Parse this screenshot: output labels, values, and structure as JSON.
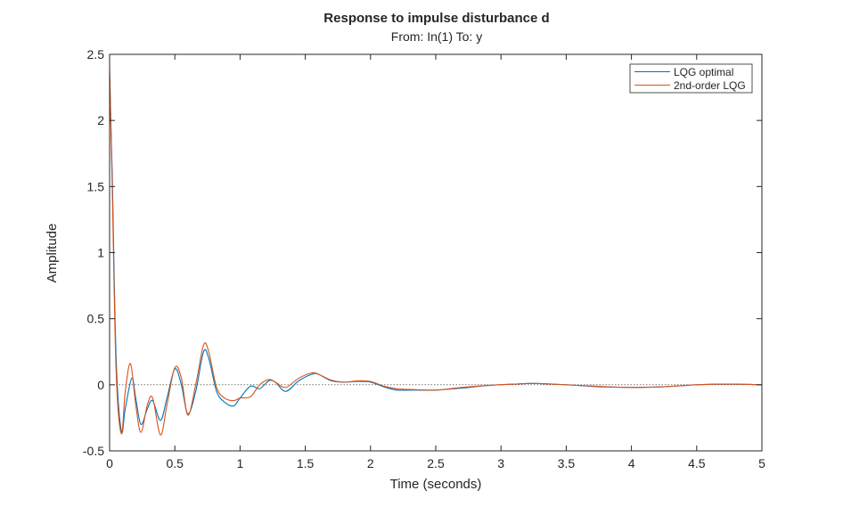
{
  "chart_data": {
    "type": "line",
    "title": "Response to impulse disturbance d",
    "subtitle": "From: In(1)  To: y",
    "xlabel": "Time (seconds)",
    "ylabel": "Amplitude",
    "xlim": [
      0,
      5
    ],
    "ylim": [
      -0.5,
      2.5
    ],
    "xticks": [
      0,
      0.5,
      1,
      1.5,
      2,
      2.5,
      3,
      3.5,
      4,
      4.5,
      5
    ],
    "xtick_labels": [
      "0",
      "0.5",
      "1",
      "1.5",
      "2",
      "2.5",
      "3",
      "3.5",
      "4",
      "4.5",
      "5"
    ],
    "yticks": [
      -0.5,
      0,
      0.5,
      1,
      1.5,
      2,
      2.5
    ],
    "ytick_labels": [
      "-0.5",
      "0",
      "0.5",
      "1",
      "1.5",
      "2",
      "2.5"
    ],
    "zero_line": true,
    "grid": false,
    "legend_position": "top-right",
    "series": [
      {
        "name": "LQG optimal",
        "color": "#0072BD",
        "x": [
          0,
          0.02,
          0.05,
          0.09,
          0.12,
          0.17,
          0.2,
          0.24,
          0.29,
          0.33,
          0.39,
          0.44,
          0.5,
          0.55,
          0.6,
          0.66,
          0.72,
          0.76,
          0.82,
          0.88,
          0.95,
          1.0,
          1.08,
          1.15,
          1.22,
          1.27,
          1.35,
          1.45,
          1.55,
          1.6,
          1.7,
          1.8,
          1.9,
          2.0,
          2.1,
          2.2,
          2.3,
          2.5,
          2.7,
          2.9,
          3.1,
          3.25,
          3.5,
          3.75,
          4.0,
          4.25,
          4.5,
          4.75,
          5.0
        ],
        "y": [
          2.35,
          1.6,
          0.2,
          -0.35,
          -0.18,
          0.05,
          -0.1,
          -0.3,
          -0.18,
          -0.12,
          -0.27,
          -0.1,
          0.12,
          0.0,
          -0.22,
          -0.05,
          0.25,
          0.2,
          -0.05,
          -0.13,
          -0.16,
          -0.1,
          -0.01,
          -0.03,
          0.03,
          0.02,
          -0.05,
          0.03,
          0.08,
          0.08,
          0.03,
          0.02,
          0.025,
          0.02,
          -0.015,
          -0.04,
          -0.04,
          -0.04,
          -0.025,
          -0.005,
          0.005,
          0.01,
          0.0,
          -0.015,
          -0.02,
          -0.015,
          0.0,
          0.005,
          0.0
        ]
      },
      {
        "name": "2nd-order LQG",
        "color": "#D95319",
        "x": [
          0,
          0.02,
          0.05,
          0.09,
          0.12,
          0.16,
          0.2,
          0.24,
          0.29,
          0.33,
          0.39,
          0.44,
          0.5,
          0.55,
          0.6,
          0.66,
          0.72,
          0.76,
          0.82,
          0.88,
          0.95,
          1.0,
          1.08,
          1.15,
          1.22,
          1.27,
          1.35,
          1.45,
          1.55,
          1.6,
          1.7,
          1.8,
          1.9,
          2.0,
          2.1,
          2.2,
          2.3,
          2.5,
          2.7,
          2.9,
          3.1,
          3.25,
          3.5,
          3.75,
          4.0,
          4.25,
          4.5,
          4.75,
          5.0
        ],
        "y": [
          2.4,
          1.5,
          0.1,
          -0.37,
          -0.05,
          0.16,
          -0.15,
          -0.36,
          -0.15,
          -0.1,
          -0.38,
          -0.15,
          0.13,
          0.05,
          -0.23,
          0.0,
          0.3,
          0.25,
          -0.02,
          -0.1,
          -0.12,
          -0.1,
          -0.09,
          0.0,
          0.04,
          0.02,
          -0.02,
          0.05,
          0.09,
          0.08,
          0.035,
          0.02,
          0.03,
          0.025,
          -0.01,
          -0.03,
          -0.035,
          -0.04,
          -0.02,
          -0.005,
          0.005,
          0.01,
          0.0,
          -0.012,
          -0.02,
          -0.015,
          0.0,
          0.005,
          0.0
        ]
      }
    ]
  }
}
